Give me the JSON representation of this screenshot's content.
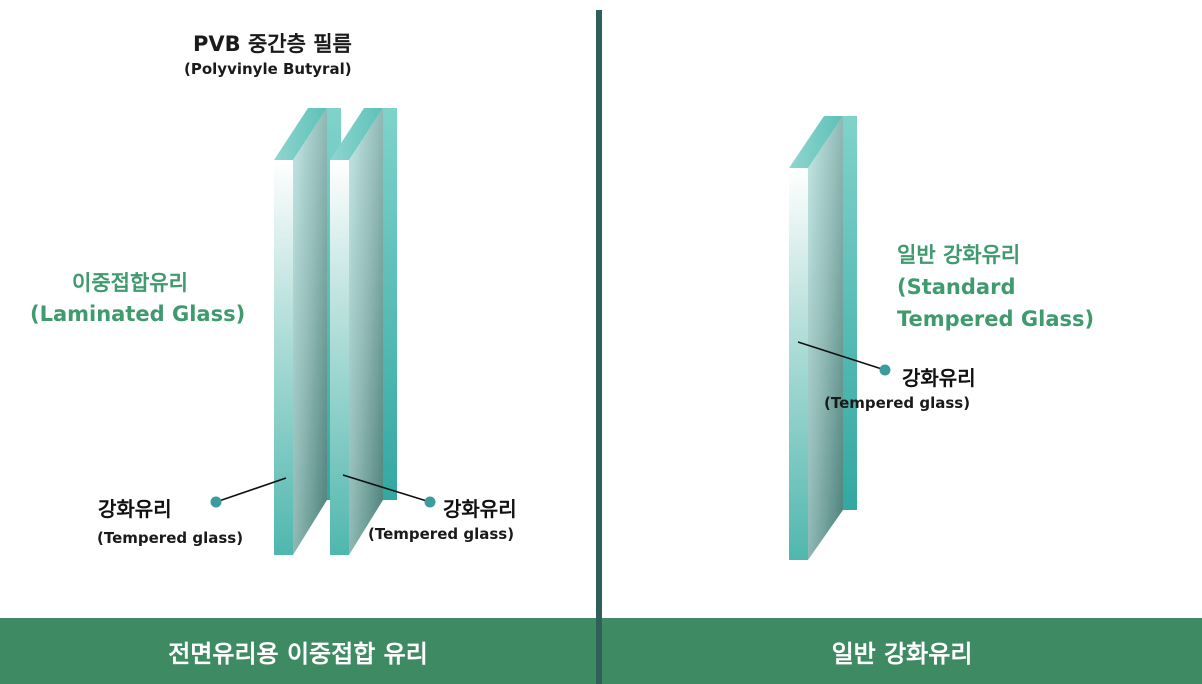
{
  "left": {
    "film_title": "PVB 중간층 필름",
    "film_subtitle": "(Polyvinyle Butyral)",
    "glass_type_ko": "이중접합유리",
    "glass_type_en": "(Laminated Glass)",
    "callout_left_ko": "강화유리",
    "callout_left_en": "(Tempered glass)",
    "callout_right_ko": "강화유리",
    "callout_right_en": "(Tempered glass)",
    "footer": "전면유리용 이중접합 유리"
  },
  "right": {
    "glass_type_ko": "일반 강화유리",
    "glass_type_en_line1": "(Standard",
    "glass_type_en_line2": "Tempered Glass)",
    "callout_ko": "강화유리",
    "callout_en": "(Tempered glass)",
    "footer": "일반 강화유리"
  },
  "colors": {
    "accent_green": "#3f9a6e",
    "footer_green": "#3e8a63",
    "divider": "#2f5f58",
    "glass_teal": "#3fb5b0",
    "dot": "#3a9c9c"
  }
}
